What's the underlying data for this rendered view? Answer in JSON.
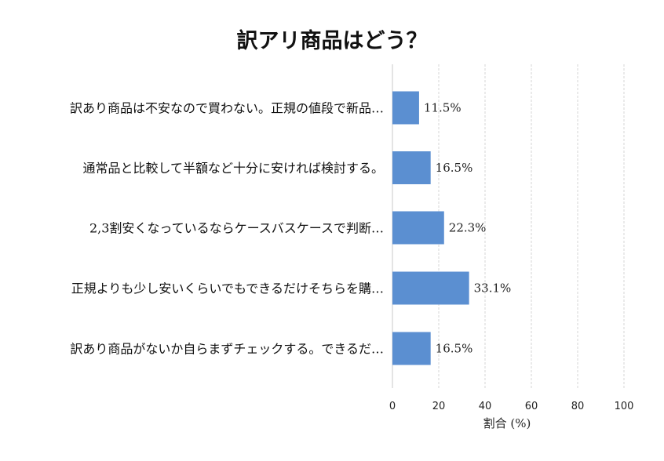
{
  "chart_data": {
    "type": "bar",
    "orientation": "horizontal",
    "title": "訳アリ商品はどう？",
    "xlabel": "割合 (%)",
    "ylabel": "",
    "xlim": [
      0,
      100
    ],
    "x_ticks": [
      0,
      20,
      40,
      60,
      80,
      100
    ],
    "grid": "vertical dashed",
    "bar_color": "#5b8fd1",
    "categories": [
      "訳あり商品は不安なので買わない。正規の値段で新品…",
      "通常品と比較して半額など十分に安ければ検討する。",
      "2,3割安くなっているならケースバスケースで判断…",
      "正規よりも少し安いくらいでもできるだけそちらを購…",
      "訳あり商品がないか自らまずチェックする。できるだ…"
    ],
    "values": [
      11.5,
      16.5,
      22.3,
      33.1,
      16.5
    ],
    "value_labels": [
      "11.5%",
      "16.5%",
      "22.3%",
      "33.1%",
      "16.5%"
    ]
  }
}
